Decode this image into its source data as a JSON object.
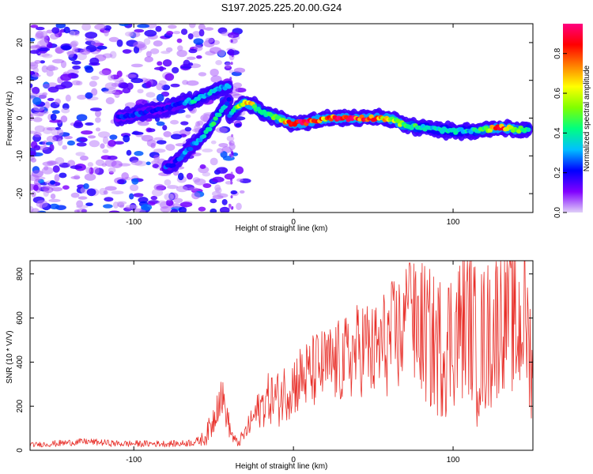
{
  "figure": {
    "title": "S197.2025.225.20.00.G24"
  },
  "chart_data": [
    {
      "type": "heatmap",
      "title": "S197.2025.225.20.00.G24",
      "xlabel": "Height of straight line (km)",
      "ylabel": "Frequency (Hz)",
      "xlim": [
        -165,
        150
      ],
      "ylim": [
        -25,
        25
      ],
      "xticks": [
        -100,
        0,
        100
      ],
      "yticks": [
        -20,
        -10,
        0,
        10,
        20
      ],
      "xtick_labels": [
        "-100",
        "0",
        "100"
      ],
      "ytick_labels": [
        "-20",
        "-10",
        "0",
        "10",
        "20"
      ],
      "colorbar": {
        "label": "Normalized spectral amplitude",
        "range": [
          0,
          0.95
        ],
        "ticks": [
          0.0,
          0.2,
          0.4,
          0.6,
          0.8
        ],
        "tick_labels": [
          "0.0",
          "0.2",
          "0.4",
          "0.6",
          "0.8"
        ],
        "colors": [
          "#e0d0f8",
          "#8000ff",
          "#0000ff",
          "#00c0ff",
          "#00ff80",
          "#80ff00",
          "#ffff00",
          "#ff8000",
          "#ff0000",
          "#ff0080"
        ]
      },
      "ridges": [
        {
          "name": "main trace",
          "x": [
            -40,
            -35,
            -30,
            -25,
            -20,
            -10,
            0,
            10,
            20,
            30,
            40,
            50,
            60,
            70,
            80,
            90,
            100,
            110,
            120,
            130,
            140,
            148
          ],
          "y": [
            0.5,
            3,
            4,
            3.5,
            1.5,
            0,
            -1.5,
            -1,
            0,
            0,
            0,
            0,
            0,
            -2,
            -2.5,
            -3,
            -3.5,
            -3.5,
            -3,
            -2.5,
            -3,
            -3
          ],
          "amplitude": [
            0.3,
            0.5,
            0.7,
            0.6,
            0.4,
            0.5,
            0.85,
            0.9,
            0.7,
            0.9,
            0.85,
            0.8,
            0.6,
            0.5,
            0.4,
            0.35,
            0.4,
            0.35,
            0.5,
            0.85,
            0.5,
            0.4
          ]
        },
        {
          "name": "lower diagonal branch",
          "x": [
            -80,
            -75,
            -70,
            -65,
            -60,
            -55,
            -50,
            -45,
            -40
          ],
          "y": [
            -13,
            -12,
            -10,
            -8,
            -6,
            -4,
            -1,
            2,
            5
          ],
          "amplitude": [
            0.25,
            0.2,
            0.3,
            0.25,
            0.3,
            0.35,
            0.5,
            0.35,
            0.25
          ]
        },
        {
          "name": "upper diagonal branch",
          "x": [
            -110,
            -100,
            -90,
            -80,
            -70,
            -60,
            -55,
            -50,
            -45,
            -40
          ],
          "y": [
            0,
            1,
            2,
            2.5,
            4,
            5,
            6,
            7,
            8,
            8.5
          ],
          "amplitude": [
            0.2,
            0.25,
            0.2,
            0.2,
            0.25,
            0.4,
            0.3,
            0.35,
            0.3,
            0.3
          ]
        }
      ]
    },
    {
      "type": "line",
      "xlabel": "Height of straight line (km)",
      "ylabel": "SNR (10 * V/V)",
      "xlim": [
        -165,
        150
      ],
      "ylim": [
        0,
        860
      ],
      "xticks": [
        -100,
        0,
        100
      ],
      "yticks": [
        0,
        200,
        400,
        600,
        800
      ],
      "xtick_labels": [
        "-100",
        "0",
        "100"
      ],
      "ytick_labels": [
        "0",
        "200",
        "400",
        "600",
        "800"
      ],
      "series": [
        {
          "name": "SNR",
          "color": "#e8302a",
          "x": [
            -165,
            -150,
            -130,
            -110,
            -90,
            -70,
            -60,
            -55,
            -50,
            -48,
            -45,
            -43,
            -40,
            -38,
            -35,
            -30,
            -25,
            -20,
            -15,
            -10,
            -5,
            0,
            5,
            10,
            15,
            20,
            25,
            30,
            35,
            40,
            45,
            50,
            55,
            60,
            65,
            70,
            73,
            75,
            80,
            85,
            90,
            95,
            100,
            105,
            110,
            115,
            120,
            125,
            130,
            135,
            140,
            145,
            148
          ],
          "y": [
            25,
            30,
            40,
            30,
            30,
            30,
            40,
            60,
            140,
            220,
            250,
            200,
            100,
            60,
            30,
            80,
            150,
            200,
            240,
            230,
            270,
            300,
            330,
            340,
            370,
            380,
            390,
            400,
            420,
            450,
            480,
            430,
            470,
            500,
            520,
            560,
            860,
            550,
            560,
            500,
            470,
            480,
            520,
            560,
            600,
            460,
            500,
            540,
            620,
            660,
            520,
            640,
            440
          ],
          "fluctuation": [
            10,
            15,
            15,
            15,
            15,
            15,
            20,
            40,
            80,
            100,
            90,
            80,
            50,
            30,
            20,
            40,
            70,
            100,
            120,
            130,
            140,
            150,
            160,
            170,
            180,
            180,
            190,
            200,
            200,
            220,
            230,
            230,
            250,
            260,
            280,
            300,
            0,
            300,
            320,
            330,
            330,
            340,
            340,
            350,
            350,
            360,
            360,
            360,
            360,
            360,
            360,
            360,
            300
          ]
        }
      ]
    }
  ]
}
